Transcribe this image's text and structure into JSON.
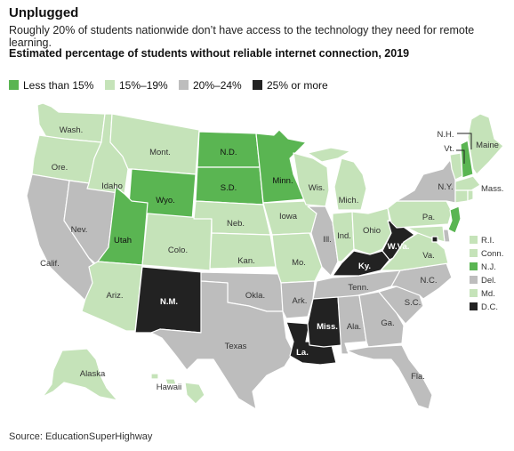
{
  "header": {
    "title": "Unplugged",
    "subtitle": "Roughly 20% of students nationwide don’t have access to the technology they need for remote learning.",
    "chart_title": "Estimated percentage of students without reliable internet connection, 2019",
    "source": "Source: EducationSuperHighway"
  },
  "legend": [
    {
      "label": "Less than 15%",
      "color": "#5ab552"
    },
    {
      "label": "15%–19%",
      "color": "#c5e3b9"
    },
    {
      "label": "20%–24%",
      "color": "#bdbdbd"
    },
    {
      "label": "25% or more",
      "color": "#222222"
    }
  ],
  "states": [
    {
      "id": "wa",
      "label": "Wash.",
      "category": "15%–19%"
    },
    {
      "id": "or",
      "label": "Ore.",
      "category": "15%–19%"
    },
    {
      "id": "ca",
      "label": "Calif.",
      "category": "20%–24%"
    },
    {
      "id": "nv",
      "label": "Nev.",
      "category": "20%–24%"
    },
    {
      "id": "id",
      "label": "Idaho",
      "category": "15%–19%"
    },
    {
      "id": "mt",
      "label": "Mont.",
      "category": "15%–19%"
    },
    {
      "id": "wy",
      "label": "Wyo.",
      "category": "Less than 15%"
    },
    {
      "id": "ut",
      "label": "Utah",
      "category": "Less than 15%"
    },
    {
      "id": "co",
      "label": "Colo.",
      "category": "15%–19%"
    },
    {
      "id": "az",
      "label": "Ariz.",
      "category": "15%–19%"
    },
    {
      "id": "nm",
      "label": "N.M.",
      "category": "25% or more"
    },
    {
      "id": "nd",
      "label": "N.D.",
      "category": "Less than 15%"
    },
    {
      "id": "sd",
      "label": "S.D.",
      "category": "Less than 15%"
    },
    {
      "id": "ne",
      "label": "Neb.",
      "category": "15%–19%"
    },
    {
      "id": "ks",
      "label": "Kan.",
      "category": "15%–19%"
    },
    {
      "id": "ok",
      "label": "Okla.",
      "category": "20%–24%"
    },
    {
      "id": "tx",
      "label": "Texas",
      "category": "20%–24%"
    },
    {
      "id": "mn",
      "label": "Minn.",
      "category": "Less than 15%"
    },
    {
      "id": "ia",
      "label": "Iowa",
      "category": "15%–19%"
    },
    {
      "id": "mo",
      "label": "Mo.",
      "category": "15%–19%"
    },
    {
      "id": "ar",
      "label": "Ark.",
      "category": "20%–24%"
    },
    {
      "id": "la",
      "label": "La.",
      "category": "25% or more"
    },
    {
      "id": "wi",
      "label": "Wis.",
      "category": "15%–19%"
    },
    {
      "id": "il",
      "label": "Ill.",
      "category": "20%–24%"
    },
    {
      "id": "mi",
      "label": "Mich.",
      "category": "15%–19%"
    },
    {
      "id": "in",
      "label": "Ind.",
      "category": "15%–19%"
    },
    {
      "id": "oh",
      "label": "Ohio",
      "category": "15%–19%"
    },
    {
      "id": "ky",
      "label": "Ky.",
      "category": "25% or more"
    },
    {
      "id": "tn",
      "label": "Tenn.",
      "category": "20%–24%"
    },
    {
      "id": "ms",
      "label": "Miss.",
      "category": "25% or more"
    },
    {
      "id": "al",
      "label": "Ala.",
      "category": "20%–24%"
    },
    {
      "id": "ga",
      "label": "Ga.",
      "category": "20%–24%"
    },
    {
      "id": "fl",
      "label": "Fla.",
      "category": "20%–24%"
    },
    {
      "id": "sc",
      "label": "S.C.",
      "category": "20%–24%"
    },
    {
      "id": "nc",
      "label": "N.C.",
      "category": "20%–24%"
    },
    {
      "id": "va",
      "label": "Va.",
      "category": "15%–19%"
    },
    {
      "id": "wv",
      "label": "W.Va.",
      "category": "25% or more"
    },
    {
      "id": "pa",
      "label": "Pa.",
      "category": "15%–19%"
    },
    {
      "id": "ny",
      "label": "N.Y.",
      "category": "20%–24%"
    },
    {
      "id": "vt",
      "label": "Vt.",
      "category": "15%–19%"
    },
    {
      "id": "nh",
      "label": "N.H.",
      "category": "Less than 15%"
    },
    {
      "id": "me",
      "label": "Maine",
      "category": "15%–19%"
    },
    {
      "id": "ma",
      "label": "Mass.",
      "category": "15%–19%"
    },
    {
      "id": "ak",
      "label": "Alaska",
      "category": "15%–19%"
    },
    {
      "id": "hi",
      "label": "Hawaii",
      "category": "15%–19%"
    }
  ],
  "small_states": [
    {
      "id": "ri",
      "label": "R.I.",
      "category": "15%–19%"
    },
    {
      "id": "ct",
      "label": "Conn.",
      "category": "15%–19%"
    },
    {
      "id": "nj",
      "label": "N.J.",
      "category": "Less than 15%"
    },
    {
      "id": "de",
      "label": "Del.",
      "category": "20%–24%"
    },
    {
      "id": "md",
      "label": "Md.",
      "category": "15%–19%"
    },
    {
      "id": "dc",
      "label": "D.C.",
      "category": "25% or more"
    }
  ]
}
